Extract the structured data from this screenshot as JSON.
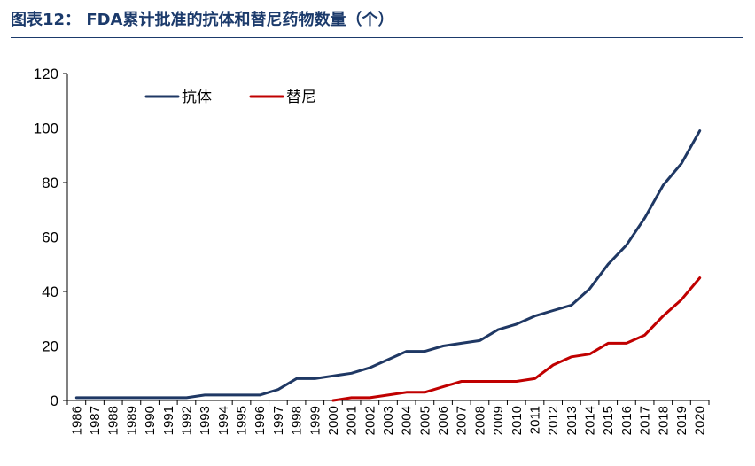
{
  "title": "图表12： FDA累计批准的抗体和替尼药物数量（个）",
  "chart_data": {
    "type": "line",
    "title": "图表12： FDA累计批准的抗体和替尼药物数量（个）",
    "xlabel": "",
    "ylabel": "",
    "ylim": [
      0,
      120
    ],
    "yticks": [
      0,
      20,
      40,
      60,
      80,
      100,
      120
    ],
    "grid": false,
    "legend_position": "top-left",
    "x": [
      "1986",
      "1987",
      "1988",
      "1989",
      "1990",
      "1991",
      "1992",
      "1993",
      "1994",
      "1995",
      "1996",
      "1997",
      "1998",
      "1999",
      "2000",
      "2001",
      "2002",
      "2003",
      "2004",
      "2005",
      "2006",
      "2007",
      "2008",
      "2009",
      "2010",
      "2011",
      "2012",
      "2013",
      "2014",
      "2015",
      "2016",
      "2017",
      "2018",
      "2019",
      "2020"
    ],
    "series": [
      {
        "name": "抗体",
        "color": "#1f3864",
        "values": [
          1,
          1,
          1,
          1,
          1,
          1,
          1,
          2,
          2,
          2,
          2,
          4,
          8,
          8,
          9,
          10,
          12,
          15,
          18,
          18,
          20,
          21,
          22,
          26,
          28,
          31,
          33,
          35,
          41,
          50,
          57,
          67,
          79,
          87,
          99
        ]
      },
      {
        "name": "替尼",
        "color": "#c00000",
        "values": [
          null,
          null,
          null,
          null,
          null,
          null,
          null,
          null,
          null,
          null,
          null,
          null,
          null,
          null,
          0,
          1,
          1,
          2,
          3,
          3,
          5,
          7,
          7,
          7,
          7,
          8,
          13,
          16,
          17,
          21,
          21,
          24,
          31,
          37,
          45
        ]
      }
    ]
  }
}
